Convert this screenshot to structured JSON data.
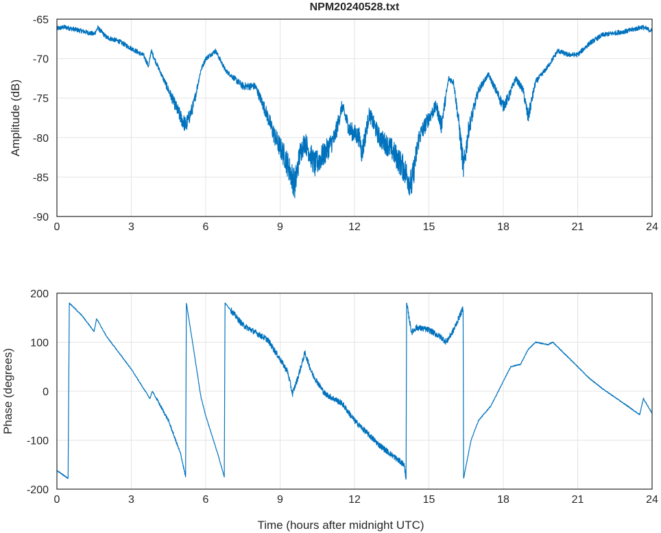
{
  "chart_data": [
    {
      "type": "line",
      "title": "NPM20240528.txt",
      "xlabel": "",
      "ylabel": "Amplitude (dB)",
      "xlim": [
        0,
        24
      ],
      "ylim": [
        -90,
        -65
      ],
      "xticks": [
        0,
        3,
        6,
        9,
        12,
        15,
        18,
        21,
        24
      ],
      "yticks": [
        -65,
        -70,
        -75,
        -80,
        -85,
        -90
      ],
      "grid": true,
      "color": "#0072BD",
      "series": [
        {
          "name": "Amplitude",
          "x": [
            0,
            0.3,
            1.0,
            1.5,
            1.65,
            2.0,
            2.5,
            3.0,
            3.5,
            3.7,
            3.8,
            4.0,
            4.5,
            5.0,
            5.2,
            5.5,
            5.8,
            6.0,
            6.4,
            6.8,
            7.5,
            8.0,
            8.4,
            8.8,
            9.2,
            9.6,
            9.8,
            10.0,
            10.4,
            10.8,
            11.2,
            11.5,
            11.8,
            12.2,
            12.3,
            12.6,
            13.0,
            13.5,
            14.0,
            14.3,
            14.6,
            15.0,
            15.3,
            15.5,
            15.8,
            16.0,
            16.2,
            16.4,
            16.6,
            17.0,
            17.4,
            17.7,
            18.0,
            18.2,
            18.5,
            18.8,
            19.0,
            19.3,
            19.8,
            20.2,
            20.6,
            21.0,
            21.5,
            22.0,
            23.0,
            23.6,
            24.0
          ],
          "y": [
            -66.2,
            -66,
            -66.5,
            -66.9,
            -66.1,
            -67.3,
            -67.8,
            -68.7,
            -69.6,
            -71,
            -69,
            -70.5,
            -74,
            -77.5,
            -78.5,
            -76,
            -71.5,
            -70,
            -69,
            -71.5,
            -73.5,
            -73.5,
            -76.5,
            -80,
            -82.5,
            -86,
            -82,
            -80.5,
            -83.5,
            -82,
            -80,
            -76,
            -79,
            -80,
            -82,
            -77,
            -80,
            -81.5,
            -84,
            -86,
            -80,
            -77.5,
            -76,
            -78.5,
            -72.5,
            -73,
            -78,
            -84,
            -79,
            -74,
            -72,
            -74,
            -76,
            -75,
            -72.5,
            -74,
            -77.5,
            -73,
            -71,
            -69,
            -69.5,
            -69.5,
            -68,
            -67,
            -66.5,
            -66,
            -66.5
          ]
        }
      ]
    },
    {
      "type": "line",
      "title": "",
      "xlabel": "Time (hours after midnight UTC)",
      "ylabel": "Phase (degrees)",
      "xlim": [
        0,
        24
      ],
      "ylim": [
        -200,
        200
      ],
      "xticks": [
        0,
        3,
        6,
        9,
        12,
        15,
        18,
        21,
        24
      ],
      "yticks": [
        200,
        100,
        0,
        -100,
        -200
      ],
      "grid": true,
      "color": "#0072BD",
      "series": [
        {
          "name": "Phase",
          "x": [
            0,
            0.45,
            0.5,
            1.0,
            1.5,
            1.6,
            2.0,
            3.0,
            3.5,
            3.75,
            3.85,
            4.5,
            5.0,
            5.19,
            5.22,
            5.5,
            5.8,
            6.0,
            6.5,
            6.75,
            6.78,
            7.5,
            8.5,
            9.0,
            9.3,
            9.5,
            9.7,
            10.0,
            10.3,
            10.8,
            11.5,
            12.0,
            12.5,
            13.0,
            13.5,
            14.0,
            14.08,
            14.1,
            14.3,
            14.5,
            15.0,
            15.5,
            15.7,
            16.0,
            16.38,
            16.4,
            16.7,
            17.0,
            17.5,
            18.0,
            18.3,
            18.7,
            19.0,
            19.3,
            19.8,
            20.0,
            20.5,
            21.0,
            21.5,
            22.0,
            23.0,
            23.5,
            23.65,
            24.0
          ],
          "y": [
            -162,
            -178,
            180,
            155,
            122,
            148,
            112,
            45,
            5,
            -15,
            0,
            -60,
            -130,
            -175,
            180,
            90,
            -10,
            -50,
            -130,
            -175,
            180,
            135,
            105,
            65,
            40,
            -5,
            25,
            78,
            35,
            -5,
            -25,
            -60,
            -85,
            -110,
            -130,
            -150,
            -178,
            180,
            120,
            130,
            125,
            110,
            100,
            125,
            170,
            -178,
            -100,
            -60,
            -30,
            20,
            50,
            55,
            85,
            100,
            95,
            100,
            75,
            50,
            25,
            5,
            -30,
            -48,
            -15,
            -45
          ]
        }
      ]
    }
  ]
}
